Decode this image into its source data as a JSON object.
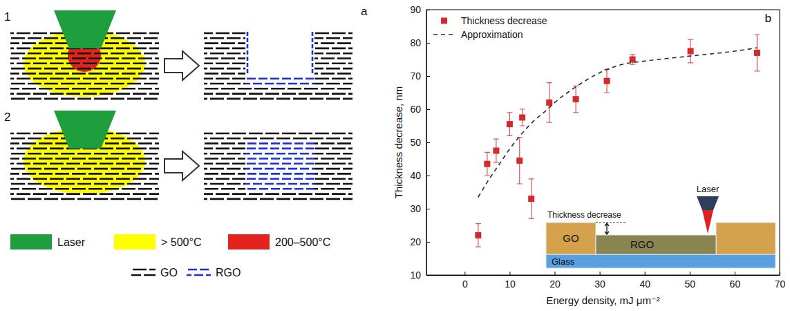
{
  "panel_a": {
    "letter": "a",
    "steps": [
      "1",
      "2"
    ],
    "legend": {
      "laser": "Laser",
      "high_temp": "> 500°C",
      "mid_temp": "200–500°C",
      "go": "GO",
      "rgo": "RGO"
    }
  },
  "inset": {
    "annotation": "Thickness decrease",
    "film": "GO",
    "reduced": "RGO",
    "substrate": "Glass",
    "beam": "Laser"
  },
  "chart_data": {
    "type": "scatter",
    "x_label": "Energy density, mJ μm⁻²",
    "y_label": "Thickness decrease, nm",
    "annotations": [
      "b"
    ],
    "series": [
      {
        "name": "Thickness decrease",
        "type": "scatter",
        "marker": "square",
        "color": "#d42a2a",
        "x": [
          3,
          5,
          7,
          10,
          12.2,
          12.8,
          14.8,
          18.8,
          24.7,
          31.6,
          37.3,
          50.2,
          65
        ],
        "values": [
          22,
          43.5,
          47.5,
          55.5,
          44.5,
          57.5,
          33,
          62,
          63,
          68.5,
          75,
          77.5,
          77
        ],
        "errors": [
          3.5,
          3.5,
          3.5,
          3.5,
          7,
          2.5,
          6,
          6,
          4,
          3.5,
          1.5,
          3.5,
          5.5
        ]
      },
      {
        "name": "Approximation",
        "type": "line",
        "line_style": "dashed",
        "color": "#333333",
        "x": [
          3,
          5,
          8,
          10,
          12,
          15,
          18,
          20,
          25,
          30,
          35,
          40,
          50,
          60,
          65
        ],
        "values": [
          33.5,
          38,
          44,
          48,
          51.5,
          56,
          59.5,
          62,
          67,
          71,
          73.5,
          74.5,
          76,
          77.5,
          78.5
        ]
      }
    ],
    "xlim": [
      -8.5,
      70
    ],
    "ylim": [
      10,
      90
    ],
    "xticks": [
      0,
      10,
      20,
      30,
      40,
      50,
      60,
      70
    ],
    "yticks": [
      10,
      20,
      30,
      40,
      50,
      60,
      70,
      80,
      90
    ],
    "grid": false,
    "legend": "top-left"
  }
}
